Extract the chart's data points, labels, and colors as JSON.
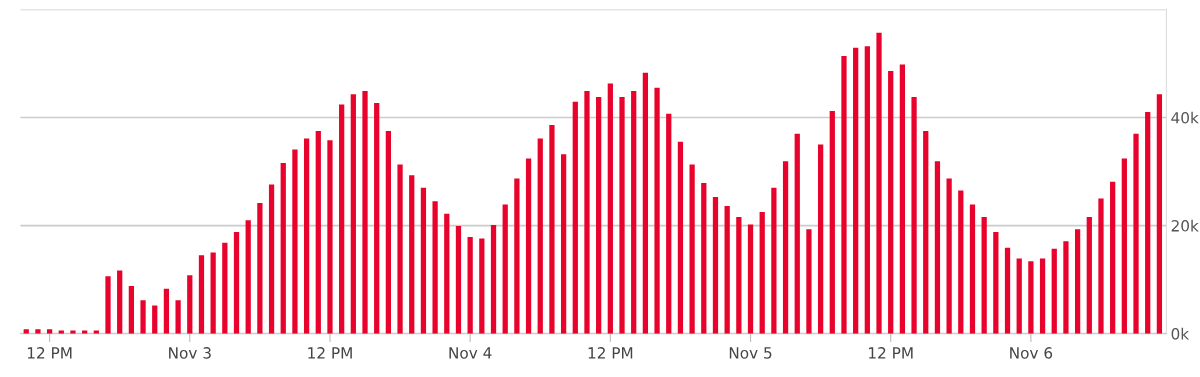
{
  "chart_data": {
    "type": "bar",
    "color": "#e8032c",
    "categories": [
      null,
      null,
      "12 PM",
      null,
      null,
      null,
      null,
      null,
      null,
      null,
      null,
      null,
      null,
      null,
      "Nov 3",
      null,
      null,
      null,
      null,
      null,
      null,
      null,
      null,
      null,
      null,
      null,
      "12 PM",
      null,
      null,
      null,
      null,
      null,
      null,
      null,
      null,
      null,
      null,
      null,
      "Nov 4",
      null,
      null,
      null,
      null,
      null,
      null,
      null,
      null,
      null,
      null,
      null,
      "12 PM",
      null,
      null,
      null,
      null,
      null,
      null,
      null,
      null,
      null,
      null,
      null,
      "Nov 5",
      null,
      null,
      null,
      null,
      null,
      null,
      null,
      null,
      null,
      null,
      null,
      "12 PM",
      null,
      null,
      null,
      null,
      null,
      null,
      null,
      null,
      null,
      null,
      null,
      "Nov 6",
      null,
      null,
      null,
      null,
      null,
      null,
      null,
      null,
      null,
      null,
      null
    ],
    "values": [
      800,
      800,
      800,
      600,
      600,
      600,
      600,
      10600,
      11700,
      8800,
      6200,
      5200,
      8300,
      6200,
      10800,
      14500,
      15000,
      16800,
      18800,
      21000,
      24200,
      27600,
      31600,
      34100,
      36100,
      37500,
      35800,
      42400,
      44300,
      44900,
      42700,
      37500,
      31300,
      29300,
      27000,
      24500,
      22200,
      19900,
      17900,
      17600,
      20100,
      23900,
      28700,
      32400,
      36100,
      38600,
      33200,
      42900,
      44900,
      43800,
      46300,
      43800,
      44900,
      48300,
      45500,
      40700,
      35500,
      31300,
      27900,
      25300,
      23600,
      21600,
      20200,
      22500,
      27000,
      31900,
      37000,
      19300,
      35000,
      41200,
      51400,
      52900,
      53200,
      55700,
      48600,
      49800,
      43800,
      37500,
      31900,
      28700,
      26500,
      23900,
      21600,
      18800,
      15900,
      13900,
      13400,
      13900,
      15700,
      17100,
      19300,
      21600,
      25000,
      28100,
      32400,
      37000,
      41000,
      44300
    ],
    "ylim": [
      0,
      60000
    ],
    "yticks": [
      {
        "value": 0,
        "label": "0k"
      },
      {
        "value": 20000,
        "label": "20k"
      },
      {
        "value": 40000,
        "label": "40k"
      },
      {
        "value": 60000,
        "label": null
      }
    ],
    "grid": "y",
    "legend": false
  }
}
